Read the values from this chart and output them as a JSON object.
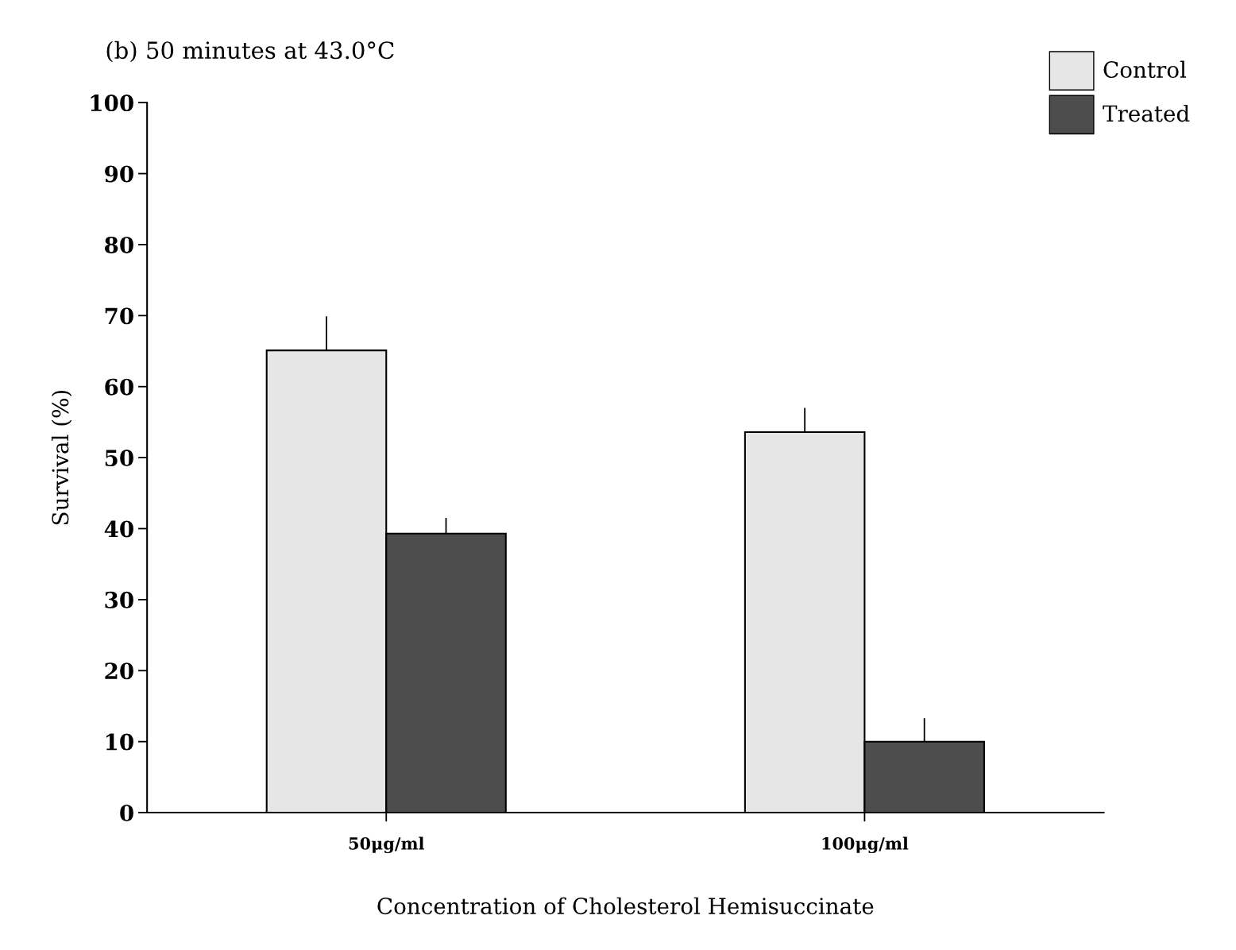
{
  "chart_data": {
    "type": "bar",
    "title": "(b) 50 minutes at 43.0°C",
    "xlabel": "Concentration of Cholesterol Hemisuccinate",
    "ylabel": "Survival (%)",
    "categories": [
      "50μg/ml",
      "100μg/ml"
    ],
    "series": [
      {
        "name": "Control",
        "color": "#e6e6e6",
        "values": [
          65.1,
          53.6
        ],
        "errors": [
          [
            65.1,
            69.9
          ],
          [
            53.6,
            57.0
          ]
        ]
      },
      {
        "name": "Treated",
        "color": "#4d4d4d",
        "values": [
          39.3,
          10.0
        ],
        "errors": [
          [
            39.3,
            41.5
          ],
          [
            10.0,
            13.3
          ]
        ]
      }
    ],
    "ylim": [
      0,
      100
    ],
    "yticks": [
      0,
      10,
      20,
      30,
      40,
      50,
      60,
      70,
      80,
      90,
      100
    ],
    "grid": false,
    "legend": "top right"
  }
}
